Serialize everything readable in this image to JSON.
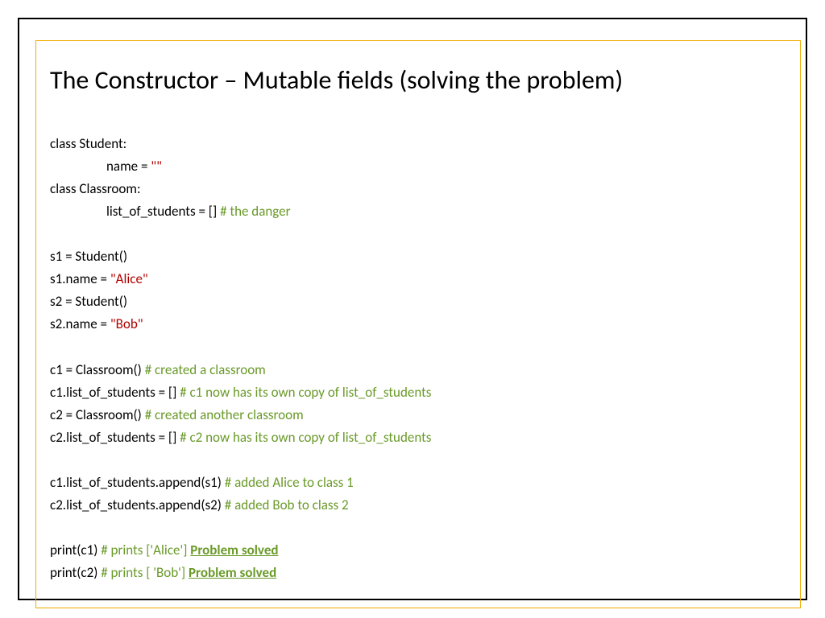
{
  "colors": {
    "outer_border": "#000000",
    "inner_border": "#f0ab00",
    "text": "#000000",
    "string": "#b00000",
    "comment": "#6a9a2a",
    "background": "#ffffff"
  },
  "typography": {
    "title_fontsize": 32,
    "code_fontsize": 17,
    "line_height": 1.65,
    "font_family": "Calibri"
  },
  "title": "The Constructor – Mutable fields (solving the problem)",
  "code": {
    "l1": "class Student:",
    "l2_pre": "name = ",
    "l2_str": "\"\"",
    "l3": "class Classroom:",
    "l4_pre": "list_of_students = [] ",
    "l4_cmt": "# the danger",
    "l5": "s1 = Student()",
    "l6_pre": "s1.name = ",
    "l6_str": "\"Alice\"",
    "l7": "s2 = Student()",
    "l8_pre": "s2.name = ",
    "l8_str": "\"Bob\"",
    "l9_pre": "c1 = Classroom() ",
    "l9_cmt": "# created a classroom",
    "l10_pre": "c1.list_of_students = [] ",
    "l10_cmt": "# c1 now has its own copy of list_of_students",
    "l11_pre": "c2 = Classroom() ",
    "l11_cmt": "# created another classroom",
    "l12_pre": "c2.list_of_students = [] ",
    "l12_cmt": "# c2 now has its own copy of list_of_students",
    "l13_pre": "c1.list_of_students.append(s1) ",
    "l13_cmt": "# added Alice to class 1",
    "l14_pre": "c2.list_of_students.append(s2) ",
    "l14_cmt": "# added Bob to class 2",
    "l15_pre": "print(c1) ",
    "l15_cmt": "# prints ['Alice'] ",
    "l15_bold": "Problem solved",
    "l16_pre": "print(c2) ",
    "l16_cmt": "# prints [ 'Bob'] ",
    "l16_bold": "Problem solved"
  }
}
